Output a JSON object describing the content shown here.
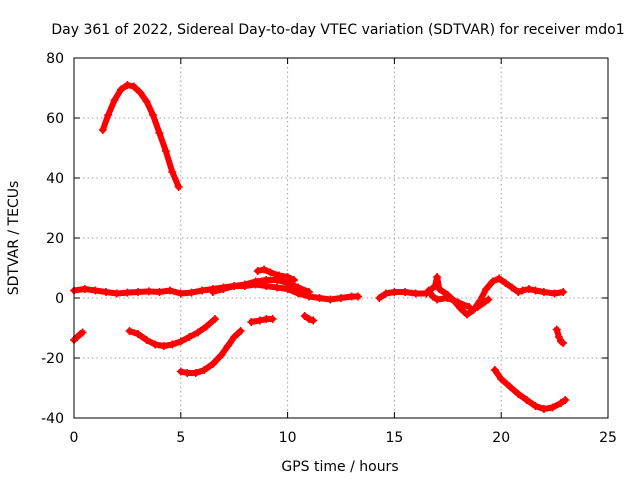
{
  "chart_data": {
    "type": "scatter",
    "title": "Day 361 of 2022, Sidereal Day-to-day VTEC variation (SDTVAR) for receiver mdo1",
    "xlabel": "GPS time / hours",
    "ylabel": "SDTVAR / TECUs",
    "xlim": [
      0,
      25
    ],
    "ylim": [
      -40,
      80
    ],
    "xticks": [
      0,
      5,
      10,
      15,
      20,
      25
    ],
    "yticks": [
      -40,
      -20,
      0,
      20,
      40,
      60,
      80
    ],
    "grid": true,
    "series_color": "#ff0000",
    "series": [
      {
        "name": "arc-high-left",
        "points": [
          [
            1.35,
            56
          ],
          [
            1.6,
            61
          ],
          [
            1.9,
            66
          ],
          [
            2.2,
            69.5
          ],
          [
            2.5,
            71
          ],
          [
            2.8,
            70.5
          ],
          [
            3.1,
            68.5
          ],
          [
            3.4,
            65.5
          ],
          [
            3.7,
            61
          ],
          [
            4.0,
            55
          ],
          [
            4.3,
            49
          ],
          [
            4.6,
            42
          ],
          [
            4.9,
            37
          ]
        ]
      },
      {
        "name": "band-zero-a",
        "points": [
          [
            0,
            2.5
          ],
          [
            0.5,
            3
          ],
          [
            1.0,
            2.5
          ],
          [
            1.5,
            2
          ],
          [
            2.0,
            1.5
          ],
          [
            2.5,
            1.8
          ],
          [
            3.0,
            2
          ],
          [
            3.5,
            2.2
          ],
          [
            4.0,
            2
          ],
          [
            4.5,
            2.5
          ],
          [
            5.0,
            1.5
          ],
          [
            5.5,
            1.8
          ],
          [
            6.0,
            2.5
          ],
          [
            6.5,
            3
          ],
          [
            7.0,
            3.5
          ],
          [
            7.5,
            4
          ],
          [
            8.0,
            4
          ],
          [
            8.5,
            4.5
          ],
          [
            9.0,
            4
          ],
          [
            9.5,
            3.5
          ],
          [
            10.0,
            3
          ],
          [
            10.5,
            1.5
          ],
          [
            11.0,
            0.5
          ],
          [
            11.5,
            0
          ],
          [
            12.0,
            -0.5
          ],
          [
            12.5,
            0
          ],
          [
            13.0,
            0.5
          ],
          [
            13.3,
            0.5
          ]
        ]
      },
      {
        "name": "band-zero-b",
        "points": [
          [
            6.5,
            2
          ],
          [
            7.0,
            3
          ],
          [
            7.5,
            4
          ],
          [
            8.0,
            4.5
          ],
          [
            8.5,
            5.5
          ],
          [
            9.0,
            6
          ],
          [
            9.5,
            6
          ],
          [
            10.0,
            5
          ],
          [
            10.5,
            3.5
          ],
          [
            11.0,
            2
          ]
        ]
      },
      {
        "name": "band-bump",
        "points": [
          [
            8.6,
            9
          ],
          [
            8.9,
            9.5
          ],
          [
            9.2,
            8.5
          ],
          [
            9.6,
            7.5
          ],
          [
            10.0,
            7
          ],
          [
            10.3,
            6
          ]
        ]
      },
      {
        "name": "arc-left-short",
        "points": [
          [
            0.0,
            -14
          ],
          [
            0.15,
            -13
          ],
          [
            0.3,
            -12
          ],
          [
            0.4,
            -11.5
          ]
        ]
      },
      {
        "name": "arc-u-1",
        "points": [
          [
            2.6,
            -11
          ],
          [
            3.0,
            -12
          ],
          [
            3.4,
            -14
          ],
          [
            3.8,
            -15.5
          ],
          [
            4.2,
            -16
          ],
          [
            4.6,
            -15.5
          ],
          [
            5.0,
            -14.5
          ],
          [
            5.4,
            -13
          ],
          [
            5.8,
            -11.5
          ],
          [
            6.2,
            -9.5
          ],
          [
            6.6,
            -7
          ]
        ]
      },
      {
        "name": "arc-low-1",
        "points": [
          [
            5.0,
            -24.5
          ],
          [
            5.3,
            -25
          ],
          [
            5.7,
            -25
          ],
          [
            6.1,
            -24
          ],
          [
            6.5,
            -22
          ],
          [
            6.9,
            -19
          ],
          [
            7.2,
            -16
          ],
          [
            7.5,
            -13
          ],
          [
            7.8,
            -11
          ]
        ]
      },
      {
        "name": "arc-short-2",
        "points": [
          [
            8.3,
            -8
          ],
          [
            8.7,
            -7.5
          ],
          [
            9.0,
            -7
          ],
          [
            9.3,
            -7
          ]
        ]
      },
      {
        "name": "arc-short-3",
        "points": [
          [
            10.8,
            -6
          ],
          [
            11.0,
            -7
          ],
          [
            11.2,
            -7.5
          ]
        ]
      },
      {
        "name": "band-zero-c",
        "points": [
          [
            14.3,
            0
          ],
          [
            14.6,
            1.5
          ],
          [
            15.0,
            2
          ],
          [
            15.5,
            2
          ],
          [
            16.0,
            1.5
          ],
          [
            16.5,
            1.5
          ],
          [
            16.9,
            4
          ],
          [
            17.0,
            7
          ],
          [
            17.1,
            3
          ],
          [
            17.5,
            1
          ],
          [
            17.8,
            -1
          ],
          [
            18.1,
            -3.5
          ],
          [
            18.4,
            -5.5
          ],
          [
            18.7,
            -4
          ],
          [
            19.0,
            -1
          ],
          [
            19.3,
            3
          ],
          [
            19.6,
            5.5
          ],
          [
            19.9,
            6.5
          ],
          [
            20.2,
            5
          ],
          [
            20.5,
            3.5
          ],
          [
            20.8,
            2
          ],
          [
            21.0,
            2.5
          ],
          [
            21.3,
            3
          ],
          [
            21.6,
            2.5
          ],
          [
            22.0,
            2
          ],
          [
            22.5,
            1.5
          ],
          [
            22.9,
            2
          ]
        ]
      },
      {
        "name": "band-zero-d",
        "points": [
          [
            16.6,
            2.5
          ],
          [
            16.8,
            0.5
          ],
          [
            17.0,
            -0.5
          ],
          [
            17.5,
            0
          ],
          [
            18.0,
            -1.5
          ],
          [
            18.5,
            -3
          ]
        ]
      },
      {
        "name": "arc-short-4",
        "points": [
          [
            18.9,
            -3
          ],
          [
            19.2,
            -1.5
          ],
          [
            19.4,
            -0.5
          ]
        ]
      },
      {
        "name": "arc-low-2",
        "points": [
          [
            19.7,
            -24
          ],
          [
            20.0,
            -27
          ],
          [
            20.4,
            -29.5
          ],
          [
            20.8,
            -32
          ],
          [
            21.2,
            -34
          ],
          [
            21.6,
            -36
          ],
          [
            22.0,
            -37
          ],
          [
            22.4,
            -36.5
          ],
          [
            22.8,
            -35
          ],
          [
            23.0,
            -34
          ]
        ]
      },
      {
        "name": "arc-short-5",
        "points": [
          [
            22.6,
            -10.5
          ],
          [
            22.7,
            -13
          ],
          [
            22.8,
            -14.5
          ],
          [
            22.9,
            -15
          ]
        ]
      }
    ]
  }
}
